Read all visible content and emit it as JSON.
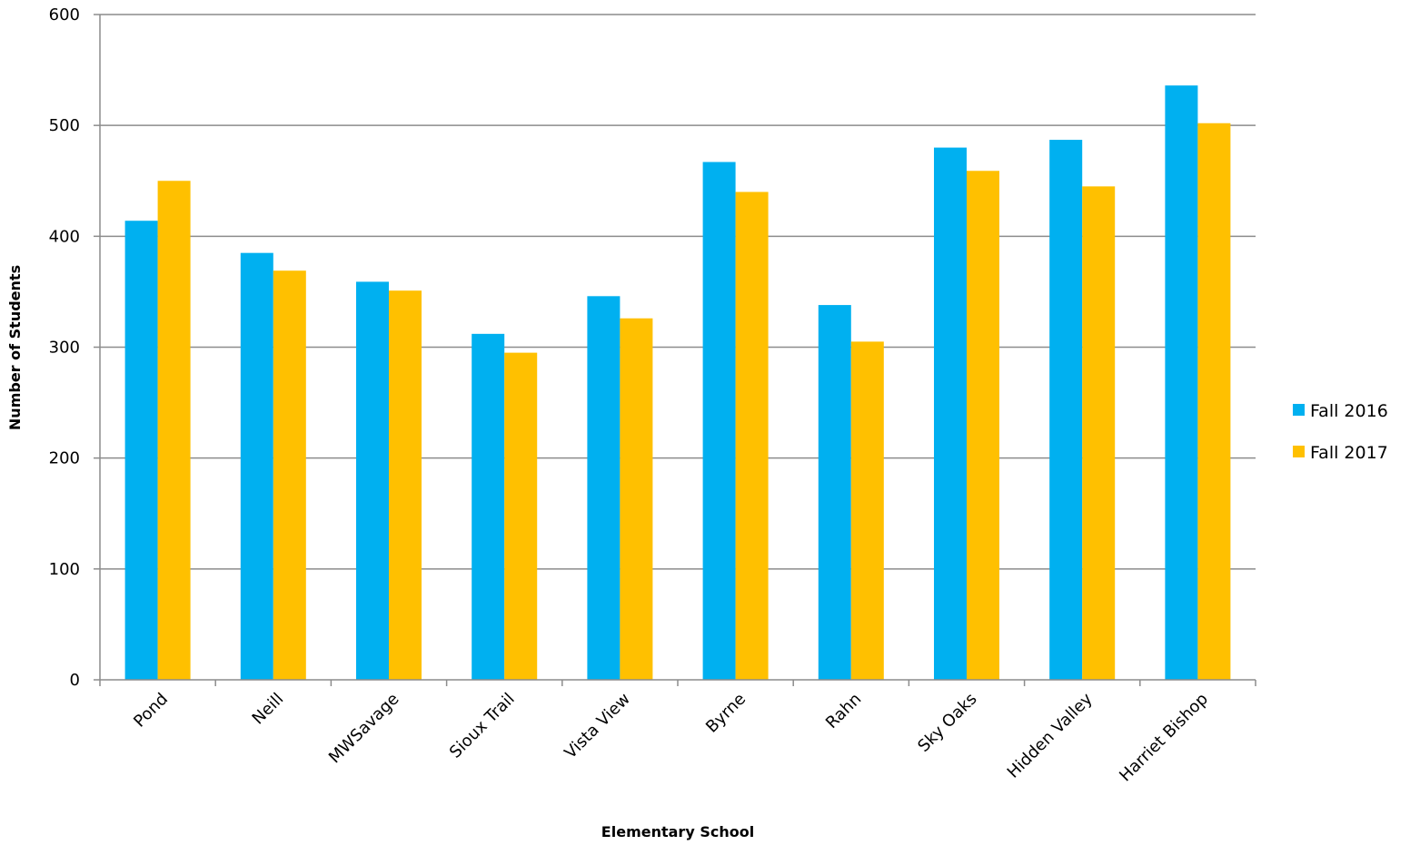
{
  "chart_data": {
    "type": "bar",
    "title": "",
    "xlabel": "Elementary School",
    "ylabel": "Number of Students",
    "ylim": [
      0,
      600
    ],
    "yticks": [
      0,
      100,
      200,
      300,
      400,
      500,
      600
    ],
    "grid": true,
    "legend_position": "right",
    "categories": [
      "Pond",
      "Neill",
      "MWSavage",
      "Sioux Trail",
      "Vista View",
      "Byrne",
      "Rahn",
      "Sky Oaks",
      "Hidden Valley",
      "Harriet Bishop"
    ],
    "series": [
      {
        "name": "Fall 2016",
        "color": "#00B0F0",
        "values": [
          414,
          385,
          359,
          312,
          346,
          467,
          338,
          480,
          487,
          536
        ]
      },
      {
        "name": "Fall 2017",
        "color": "#FFC000",
        "values": [
          450,
          369,
          351,
          295,
          326,
          440,
          305,
          459,
          445,
          502
        ]
      }
    ]
  }
}
